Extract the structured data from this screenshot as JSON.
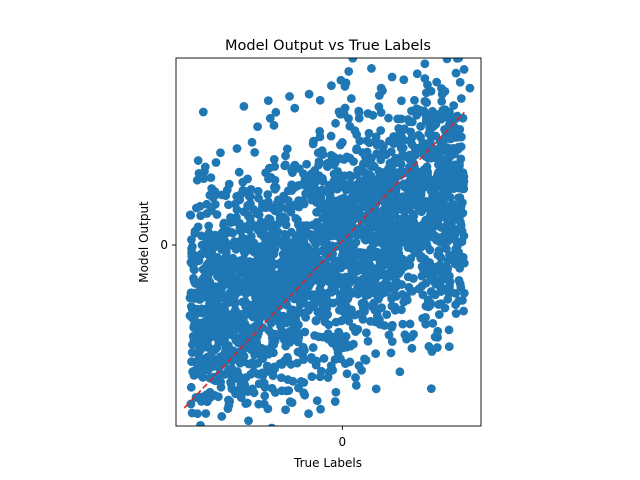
{
  "chart_data": {
    "type": "scatter",
    "title": "Model Output vs True Labels",
    "xlabel": "True Labels",
    "ylabel": "Model Output",
    "x_ticks": [
      {
        "value": 0,
        "label": "0"
      }
    ],
    "y_ticks": [
      {
        "value": 0,
        "label": "0"
      }
    ],
    "xlim": [
      -3.0,
      2.5
    ],
    "ylim": [
      -3.0,
      3.1
    ],
    "grid": false,
    "legend": "none",
    "point_color": "#1f77b4",
    "reference_line": {
      "x": [
        -2.85,
        2.2
      ],
      "y": [
        -2.7,
        2.2
      ],
      "color": "#d62728",
      "style": "dashed"
    },
    "sample_points": [
      [
        -2.6,
        0.3
      ],
      [
        -2.4,
        -1.2
      ],
      [
        -2.7,
        -2.1
      ],
      [
        -2.5,
        1.1
      ],
      [
        -2.2,
        -0.4
      ],
      [
        -1.9,
        1.6
      ],
      [
        -1.8,
        -1.8
      ],
      [
        -1.5,
        0.5
      ],
      [
        -1.4,
        -0.9
      ],
      [
        -1.2,
        2.2
      ],
      [
        -1.1,
        -2.2
      ],
      [
        -0.9,
        1.2
      ],
      [
        -0.8,
        -0.6
      ],
      [
        -0.6,
        2.5
      ],
      [
        -0.5,
        -1.5
      ],
      [
        -0.3,
        0.9
      ],
      [
        -0.2,
        -2.0
      ],
      [
        0.0,
        1.7
      ],
      [
        0.1,
        -0.3
      ],
      [
        0.3,
        2.2
      ],
      [
        0.4,
        -1.1
      ],
      [
        0.6,
        0.4
      ],
      [
        0.7,
        2.6
      ],
      [
        0.9,
        -1.6
      ],
      [
        1.0,
        1.4
      ],
      [
        1.2,
        -0.7
      ],
      [
        1.3,
        2.4
      ],
      [
        1.5,
        -1.2
      ],
      [
        1.6,
        0.9
      ],
      [
        1.8,
        2.5
      ],
      [
        1.9,
        -0.9
      ],
      [
        2.0,
        1.6
      ],
      [
        2.1,
        3.1
      ],
      [
        2.2,
        -0.3
      ],
      [
        2.3,
        2.6
      ],
      [
        -2.3,
        -2.0
      ],
      [
        -1.6,
        -2.1
      ],
      [
        -0.7,
        -1.9
      ],
      [
        0.6,
        -1.8
      ],
      [
        -2.6,
        1.4
      ],
      [
        -1.3,
        2.1
      ],
      [
        -0.4,
        2.4
      ],
      [
        -1.5,
        -2.3
      ],
      [
        0.3,
        -2.0
      ],
      [
        1.7,
        2.7
      ],
      [
        2.05,
        2.85
      ],
      [
        1.6,
        2.55
      ],
      [
        0.55,
        2.15
      ],
      [
        -2.55,
        -2.05
      ],
      [
        -1.4,
        -2.5
      ]
    ]
  }
}
